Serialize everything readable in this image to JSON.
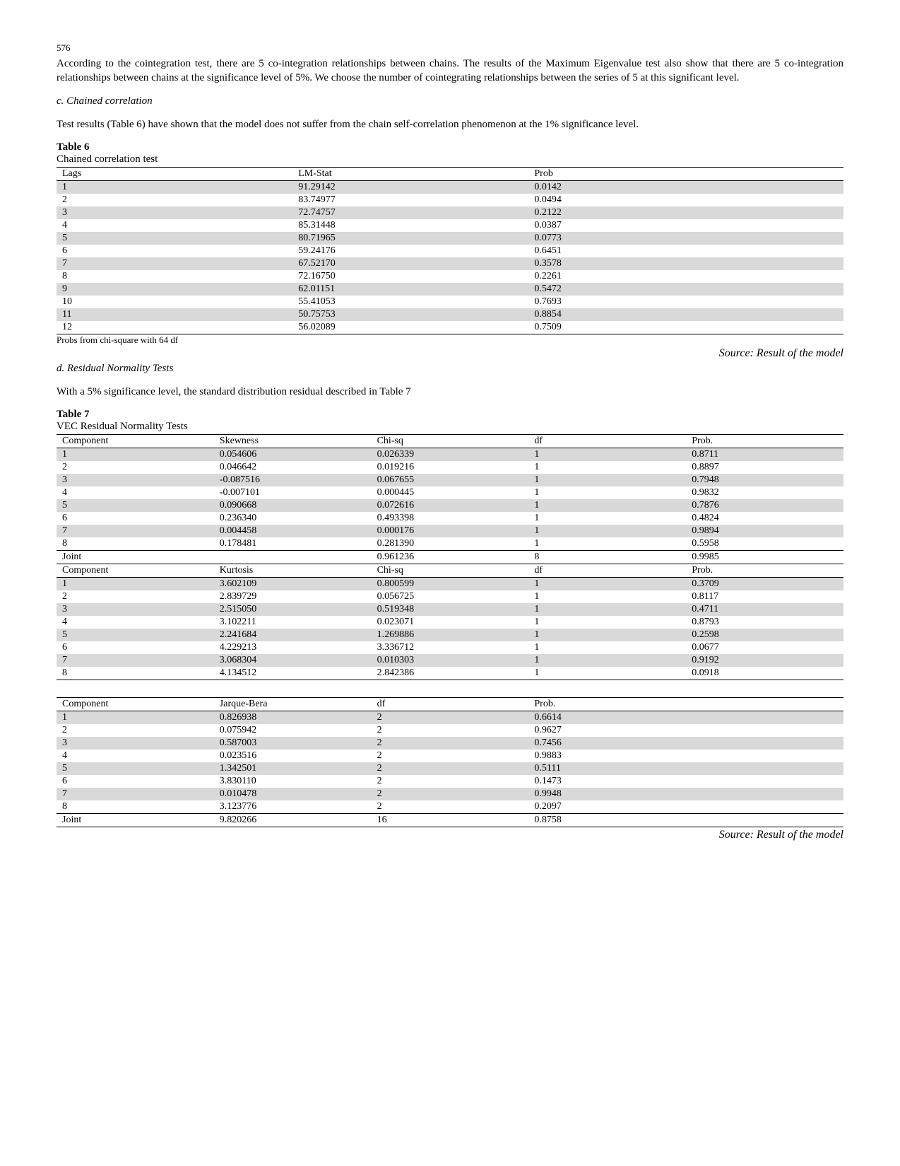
{
  "page_number": "576",
  "intro_para": "According to the cointegration test, there are 5 co-integration relationships between chains. The results of the Maximum Eigenvalue test also show that there are 5 co-integration relationships between chains at the significance level of 5%. We choose the number of cointegrating relationships between the series of 5 at this significant level.",
  "section_c": "c. Chained correlation",
  "section_c_para": "Test results (Table 6) have shown that the model does not suffer from the chain self-correlation phenomenon at the 1% significance level.",
  "table6": {
    "label": "Table 6",
    "title": "Chained correlation test",
    "columns": [
      "Lags",
      "LM-Stat",
      "Prob"
    ],
    "rows": [
      [
        "1",
        "91.29142",
        "0.0142"
      ],
      [
        "2",
        "83.74977",
        "0.0494"
      ],
      [
        "3",
        "72.74757",
        "0.2122"
      ],
      [
        "4",
        "85.31448",
        "0.0387"
      ],
      [
        "5",
        "80.71965",
        "0.0773"
      ],
      [
        "6",
        "59.24176",
        "0.6451"
      ],
      [
        "7",
        "67.52170",
        "0.3578"
      ],
      [
        "8",
        "72.16750",
        "0.2261"
      ],
      [
        "9",
        "62.01151",
        "0.5472"
      ],
      [
        "10",
        "55.41053",
        "0.7693"
      ],
      [
        "11",
        "50.75753",
        "0.8854"
      ],
      [
        "12",
        "56.02089",
        "0.7509"
      ]
    ],
    "note": "Probs from chi-square with 64 df",
    "source": "Source: Result of the model",
    "col_widths": [
      "30%",
      "30%",
      "40%"
    ],
    "shade_color": "#d9d9d9"
  },
  "section_d": "d. Residual Normality Tests",
  "section_d_para": "With a 5% significance level, the standard distribution residual described in Table 7",
  "table7": {
    "label": "Table 7",
    "title": "VEC Residual Normality Tests",
    "block1": {
      "columns": [
        "Component",
        "Skewness",
        "Chi-sq",
        "df",
        "Prob."
      ],
      "rows": [
        [
          "1",
          "0.054606",
          "0.026339",
          "1",
          "0.8711"
        ],
        [
          "2",
          "0.046642",
          "0.019216",
          "1",
          "0.8897"
        ],
        [
          "3",
          "-0.087516",
          "0.067655",
          "1",
          "0.7948"
        ],
        [
          "4",
          "-0.007101",
          "0.000445",
          "1",
          "0.9832"
        ],
        [
          "5",
          "0.090668",
          "0.072616",
          "1",
          "0.7876"
        ],
        [
          "6",
          "0.236340",
          "0.493398",
          "1",
          "0.4824"
        ],
        [
          "7",
          "0.004458",
          "0.000176",
          "1",
          "0.9894"
        ],
        [
          "8",
          "0.178481",
          "0.281390",
          "1",
          "0.5958"
        ]
      ],
      "joint": [
        "Joint",
        "",
        "0.961236",
        "8",
        "0.9985"
      ]
    },
    "block2": {
      "columns": [
        "Component",
        "Kurtosis",
        "Chi-sq",
        "df",
        "Prob."
      ],
      "rows": [
        [
          "1",
          "3.602109",
          "0.800599",
          "1",
          "0.3709"
        ],
        [
          "2",
          "2.839729",
          "0.056725",
          "1",
          "0.8117"
        ],
        [
          "3",
          "2.515050",
          "0.519348",
          "1",
          "0.4711"
        ],
        [
          "4",
          "3.102211",
          "0.023071",
          "1",
          "0.8793"
        ],
        [
          "5",
          "2.241684",
          "1.269886",
          "1",
          "0.2598"
        ],
        [
          "6",
          "4.229213",
          "3.336712",
          "1",
          "0.0677"
        ],
        [
          "7",
          "3.068304",
          "0.010303",
          "1",
          "0.9192"
        ],
        [
          "8",
          "4.134512",
          "2.842386",
          "1",
          "0.0918"
        ]
      ]
    },
    "block3": {
      "columns": [
        "Component",
        "Jarque-Bera",
        "df",
        "Prob.",
        ""
      ],
      "rows": [
        [
          "1",
          "0.826938",
          "2",
          "0.6614",
          ""
        ],
        [
          "2",
          "0.075942",
          "2",
          "0.9627",
          ""
        ],
        [
          "3",
          "0.587003",
          "2",
          "0.7456",
          ""
        ],
        [
          "4",
          "0.023516",
          "2",
          "0.9883",
          ""
        ],
        [
          "5",
          "1.342501",
          "2",
          "0.5111",
          ""
        ],
        [
          "6",
          "3.830110",
          "2",
          "0.1473",
          ""
        ],
        [
          "7",
          "0.010478",
          "2",
          "0.9948",
          ""
        ],
        [
          "8",
          "3.123776",
          "2",
          "0.2097",
          ""
        ]
      ],
      "joint": [
        "Joint",
        "9.820266",
        "16",
        "0.8758",
        ""
      ]
    },
    "col_widths5": [
      "20%",
      "20%",
      "20%",
      "20%",
      "20%"
    ],
    "source": "Source: Result of the model"
  }
}
